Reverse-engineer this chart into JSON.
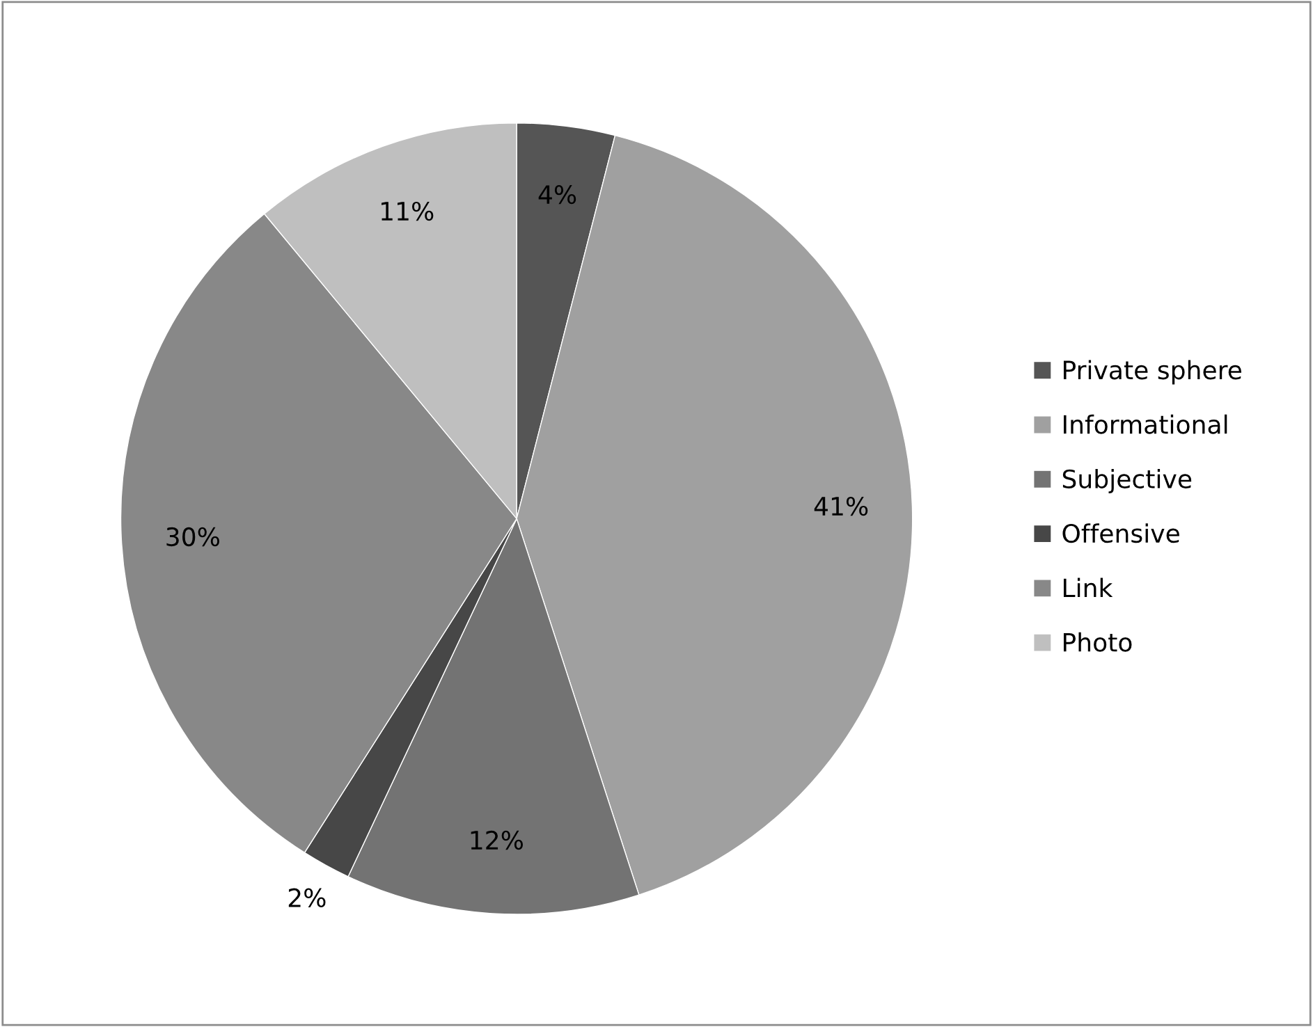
{
  "chart_data": {
    "type": "pie",
    "categories": [
      "Private sphere",
      "Informational",
      "Subjective",
      "Offensive",
      "Link",
      "Photo"
    ],
    "values": [
      4,
      41,
      12,
      2,
      30,
      11
    ],
    "colors": [
      "#555555",
      "#a0a0a0",
      "#737373",
      "#474747",
      "#888888",
      "#bfbfbf"
    ],
    "value_labels": [
      "4%",
      "41%",
      "12%",
      "2%",
      "30%",
      "11%"
    ],
    "legend": "right"
  }
}
